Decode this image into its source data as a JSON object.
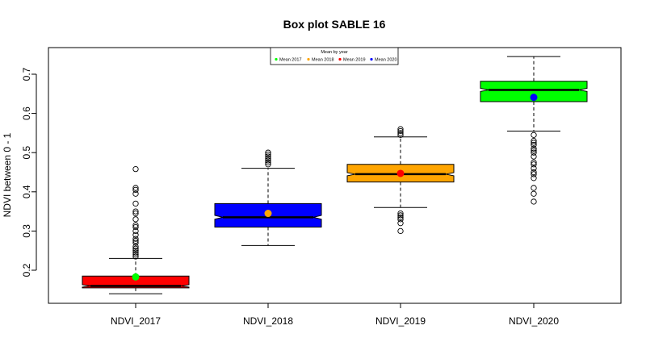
{
  "chart_data": {
    "type": "box",
    "title": "Box plot SABLE 16",
    "ylabel": "NDVI between 0 - 1",
    "xlabel": "",
    "ylim": [
      0.12,
      0.77
    ],
    "y_ticks": [
      0.2,
      0.3,
      0.4,
      0.5,
      0.6,
      0.7
    ],
    "y_tick_labels": [
      "0.2",
      "0.3",
      "0.4",
      "0.5",
      "0.6",
      "0.7"
    ],
    "grid": false,
    "notched": true,
    "legend": {
      "title": "Mean by year",
      "position": "top-center",
      "entries": [
        {
          "label": "Mean 2017",
          "color": "#00ff00"
        },
        {
          "label": "Mean 2018",
          "color": "#ffa500"
        },
        {
          "label": "Mean 2019",
          "color": "#ff0000"
        },
        {
          "label": "Mean 2020",
          "color": "#0000ff"
        }
      ]
    },
    "categories": [
      "NDVI_2017",
      "NDVI_2018",
      "NDVI_2019",
      "NDVI_2020"
    ],
    "boxes": [
      {
        "name": "NDVI_2017",
        "fill": "#ff0000",
        "whisker_low": 0.14,
        "q1": 0.155,
        "median": 0.16,
        "q3": 0.185,
        "whisker_high": 0.23,
        "notch_low": 0.157,
        "notch_high": 0.163,
        "mean": 0.183,
        "mean_color": "#00ff00",
        "outliers": [
          0.235,
          0.24,
          0.245,
          0.25,
          0.255,
          0.26,
          0.27,
          0.275,
          0.28,
          0.29,
          0.3,
          0.31,
          0.315,
          0.33,
          0.345,
          0.35,
          0.37,
          0.395,
          0.405,
          0.41,
          0.458
        ]
      },
      {
        "name": "NDVI_2018",
        "fill": "#0000ff",
        "whisker_low": 0.263,
        "q1": 0.31,
        "median": 0.335,
        "q3": 0.37,
        "whisker_high": 0.46,
        "notch_low": 0.33,
        "notch_high": 0.34,
        "mean": 0.345,
        "mean_color": "#ffa500",
        "outliers": [
          0.47,
          0.475,
          0.48,
          0.485,
          0.49,
          0.495,
          0.5
        ]
      },
      {
        "name": "NDVI_2019",
        "fill": "#ffa500",
        "whisker_low": 0.36,
        "q1": 0.425,
        "median": 0.445,
        "q3": 0.47,
        "whisker_high": 0.54,
        "notch_low": 0.441,
        "notch_high": 0.449,
        "mean": 0.447,
        "mean_color": "#ff0000",
        "outliers": [
          0.3,
          0.32,
          0.33,
          0.335,
          0.34,
          0.345,
          0.545,
          0.55,
          0.555,
          0.56
        ]
      },
      {
        "name": "NDVI_2020",
        "fill": "#00ff00",
        "whisker_low": 0.555,
        "q1": 0.63,
        "median": 0.66,
        "q3": 0.682,
        "whisker_high": 0.745,
        "notch_low": 0.656,
        "notch_high": 0.664,
        "mean": 0.641,
        "mean_color": "#0000ff",
        "outliers": [
          0.375,
          0.395,
          0.41,
          0.435,
          0.445,
          0.45,
          0.46,
          0.47,
          0.475,
          0.49,
          0.5,
          0.505,
          0.51,
          0.52,
          0.525,
          0.53,
          0.545
        ]
      }
    ]
  }
}
